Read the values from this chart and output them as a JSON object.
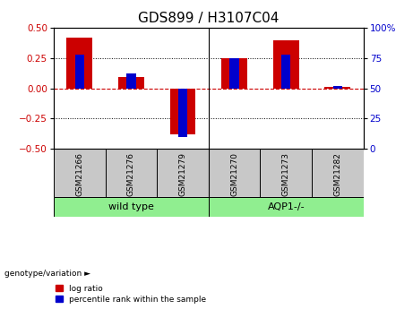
{
  "title": "GDS899 / H3107C04",
  "samples": [
    "GSM21266",
    "GSM21276",
    "GSM21279",
    "GSM21270",
    "GSM21273",
    "GSM21282"
  ],
  "log_ratio": [
    0.42,
    0.09,
    -0.38,
    0.25,
    0.4,
    0.01
  ],
  "percentile_rank_pct": [
    78,
    62,
    10,
    75,
    78,
    52
  ],
  "groups": [
    {
      "label": "wild type",
      "indices": [
        0,
        1,
        2
      ],
      "color": "#90EE90"
    },
    {
      "label": "AQP1-/-",
      "indices": [
        3,
        4,
        5
      ],
      "color": "#90EE90"
    }
  ],
  "group_divider": 2.5,
  "ylim": [
    -0.5,
    0.5
  ],
  "y2lim": [
    0,
    100
  ],
  "yticks": [
    -0.5,
    -0.25,
    0.0,
    0.25,
    0.5
  ],
  "y2ticks": [
    0,
    25,
    50,
    75,
    100
  ],
  "hlines_dotted": [
    -0.25,
    0.25
  ],
  "bar_color_red": "#CC0000",
  "bar_color_blue": "#0000CC",
  "bar_width": 0.5,
  "blue_bar_width": 0.18,
  "background_label": "#C8C8C8",
  "title_fontsize": 11,
  "tick_fontsize": 7.5,
  "label_fontsize": 6.5,
  "group_fontsize": 8
}
